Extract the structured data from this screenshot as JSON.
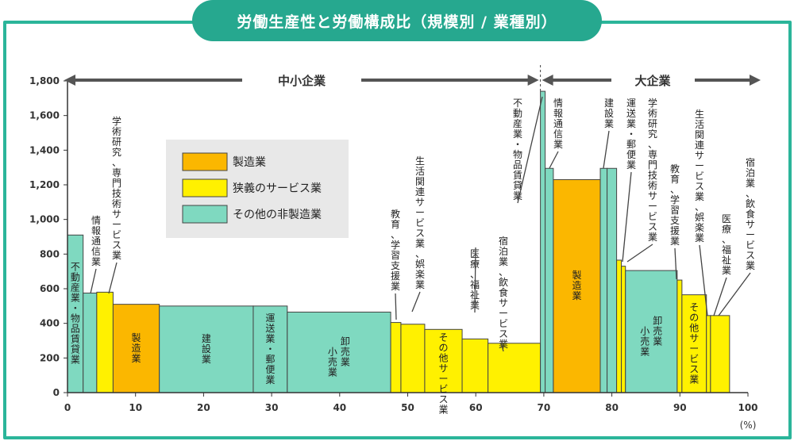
{
  "title": "労働生産性と労働構成比（規模別 / 業種別）",
  "colors": {
    "manufacturing": "#fbb700",
    "narrow_service": "#fff100",
    "other_non_mfg": "#7fd9c0",
    "frame": "#2bb59a",
    "title_bg": "#26a88f",
    "legend_bg": "#e8e8e8",
    "stroke": "#444444"
  },
  "regions": {
    "sme": "中小企業",
    "large": "大企業"
  },
  "chart_data": {
    "type": "bar",
    "subtype": "variable-width (marimekko)",
    "xlabel": "(%)",
    "ylabel": "",
    "xlim": [
      0,
      100
    ],
    "ylim": [
      0,
      1800
    ],
    "x_ticks": [
      0,
      10,
      20,
      30,
      40,
      50,
      60,
      70,
      80,
      90,
      100
    ],
    "y_ticks": [
      0,
      200,
      400,
      600,
      800,
      1000,
      1200,
      1400,
      1600,
      1800
    ],
    "y_tick_labels": [
      "0",
      "200",
      "400",
      "600",
      "800",
      "1,000",
      "1,200",
      "1,400",
      "1,600",
      "1,800"
    ],
    "legend": [
      {
        "key": "manufacturing",
        "label": "製造業"
      },
      {
        "key": "narrow_service",
        "label": "狭義のサービス業"
      },
      {
        "key": "other_non_mfg",
        "label": "その他の非製造業"
      }
    ],
    "divider_x": 69.5,
    "bars": [
      {
        "x0": 0.0,
        "x1": 2.3,
        "value": 910,
        "cat": "other_non_mfg",
        "label": "不動産業・物品賃貸業",
        "label_pos": "in"
      },
      {
        "x0": 2.3,
        "x1": 4.3,
        "value": 575,
        "cat": "other_non_mfg",
        "label": "情報通信業",
        "label_pos": "out"
      },
      {
        "x0": 4.3,
        "x1": 6.7,
        "value": 580,
        "cat": "narrow_service",
        "label": "学術研究、専門技術サービス業",
        "label_pos": "out"
      },
      {
        "x0": 6.7,
        "x1": 13.5,
        "value": 510,
        "cat": "manufacturing",
        "label": "製造業",
        "label_pos": "in"
      },
      {
        "x0": 13.5,
        "x1": 27.3,
        "value": 500,
        "cat": "other_non_mfg",
        "label": "建設業",
        "label_pos": "in"
      },
      {
        "x0": 27.3,
        "x1": 32.3,
        "value": 500,
        "cat": "other_non_mfg",
        "label": "運送業・郵便業",
        "label_pos": "in"
      },
      {
        "x0": 32.3,
        "x1": 47.5,
        "value": 465,
        "cat": "other_non_mfg",
        "label": "卸売業 小売業",
        "label_pos": "in"
      },
      {
        "x0": 47.5,
        "x1": 49.0,
        "value": 405,
        "cat": "narrow_service",
        "label": "教育、学習支援業",
        "label_pos": "out"
      },
      {
        "x0": 49.0,
        "x1": 52.5,
        "value": 395,
        "cat": "narrow_service",
        "label": "生活関連サービス業、娯楽業",
        "label_pos": "out"
      },
      {
        "x0": 52.5,
        "x1": 58.0,
        "value": 365,
        "cat": "narrow_service",
        "label": "その他サービス業",
        "label_pos": "in"
      },
      {
        "x0": 58.0,
        "x1": 61.8,
        "value": 310,
        "cat": "narrow_service",
        "label": "医療、福祉業",
        "label_pos": "out"
      },
      {
        "x0": 61.8,
        "x1": 69.5,
        "value": 285,
        "cat": "narrow_service",
        "label": "宿泊業、飲食サービス業",
        "label_pos": "out"
      },
      {
        "x0": 69.5,
        "x1": 70.2,
        "value": 1740,
        "cat": "other_non_mfg",
        "label": "不動産業・物品賃貸業",
        "label_pos": "out"
      },
      {
        "x0": 70.2,
        "x1": 71.4,
        "value": 1295,
        "cat": "other_non_mfg",
        "label": "情報通信業",
        "label_pos": "out"
      },
      {
        "x0": 71.4,
        "x1": 78.3,
        "value": 1230,
        "cat": "manufacturing",
        "label": "製造業",
        "label_pos": "in"
      },
      {
        "x0": 78.3,
        "x1": 79.3,
        "value": 1295,
        "cat": "other_non_mfg",
        "label": "建設業",
        "label_pos": "out"
      },
      {
        "x0": 79.3,
        "x1": 80.7,
        "value": 1295,
        "cat": "other_non_mfg",
        "label": "運送業・郵便業",
        "label_pos": "out"
      },
      {
        "x0": 80.7,
        "x1": 81.4,
        "value": 765,
        "cat": "narrow_service",
        "label": "学術研究、専門技術サービス業",
        "label_pos": "out"
      },
      {
        "x0": 81.4,
        "x1": 82.0,
        "value": 730,
        "cat": "narrow_service",
        "label": "",
        "label_pos": "none"
      },
      {
        "x0": 82.0,
        "x1": 89.6,
        "value": 705,
        "cat": "other_non_mfg",
        "label": "卸売業 小売業",
        "label_pos": "in"
      },
      {
        "x0": 89.6,
        "x1": 90.3,
        "value": 650,
        "cat": "narrow_service",
        "label": "教育、学習支援業",
        "label_pos": "out"
      },
      {
        "x0": 90.3,
        "x1": 93.9,
        "value": 565,
        "cat": "narrow_service",
        "label": "その他サービス業",
        "label_pos": "in"
      },
      {
        "x0": 93.9,
        "x1": 94.5,
        "value": 445,
        "cat": "narrow_service",
        "label": "生活関連サービス業、娯楽業",
        "label_pos": "out"
      },
      {
        "x0": 94.5,
        "x1": 97.3,
        "value": 445,
        "cat": "narrow_service",
        "label": "医療、福祉業",
        "label_pos": "out"
      },
      {
        "x0": 97.3,
        "x1": 97.3,
        "value": 0,
        "cat": "narrow_service",
        "label": "宿泊業、飲食サービス業",
        "label_pos": "out"
      }
    ]
  }
}
